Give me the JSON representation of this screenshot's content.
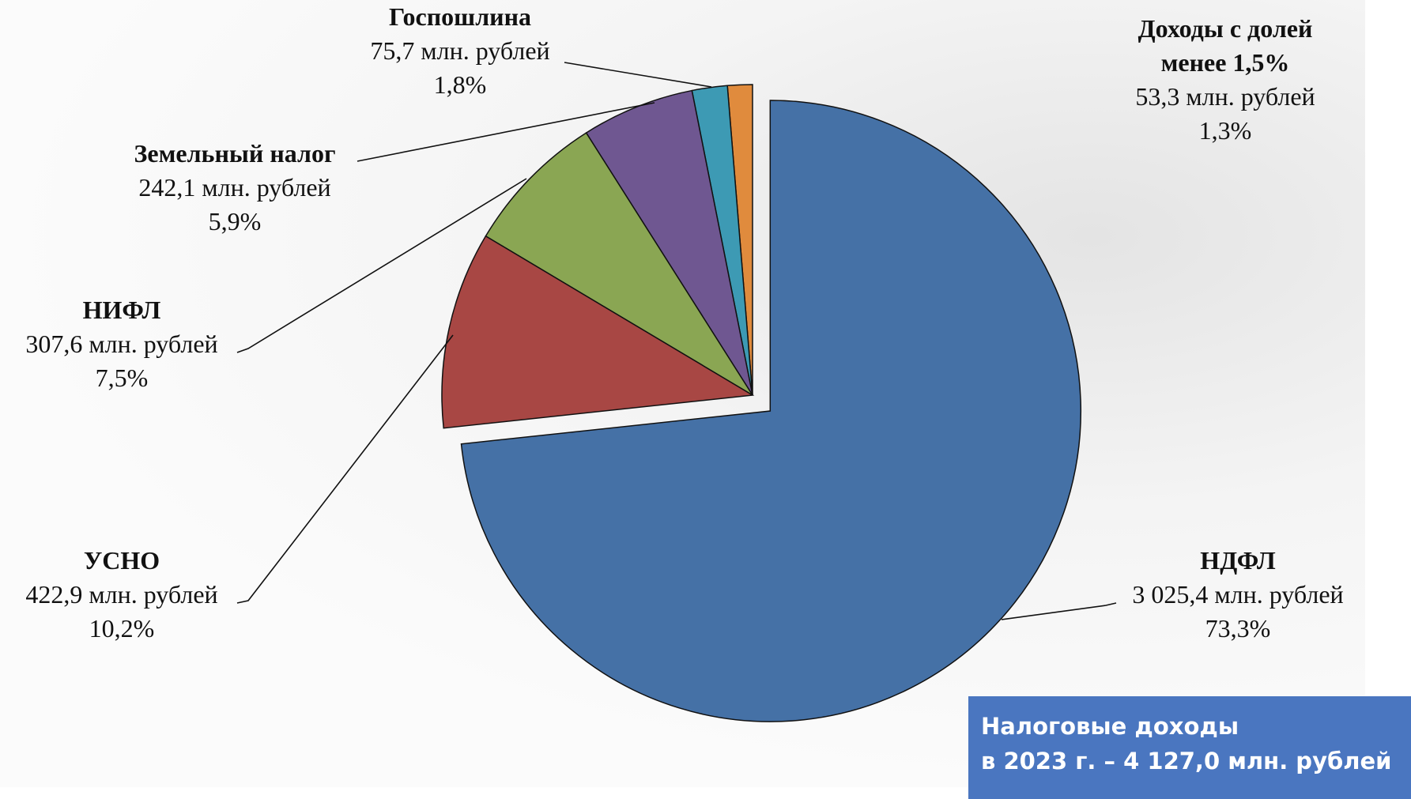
{
  "chart_data": {
    "type": "pie",
    "categories": [
      "НДФЛ",
      "УСНО",
      "НИФЛ",
      "Земельный налог",
      "Госпошлина",
      "Доходы с долей менее 1,5%"
    ],
    "values": [
      3025.4,
      422.9,
      307.6,
      242.1,
      75.7,
      53.3
    ],
    "value_labels": [
      "3 025,4 млн. рублей",
      "422,9 млн. рублей",
      "307,6 млн. рублей",
      "242,1 млн. рублей",
      "75,7 млн. рублей",
      "53,3 млн. рублей"
    ],
    "percents": [
      73.3,
      10.2,
      7.5,
      5.9,
      1.8,
      1.3
    ],
    "percent_labels": [
      "73,3%",
      "10,2%",
      "7,5%",
      "5,9%",
      "1,8%",
      "1,3%"
    ],
    "colors": [
      "#4571a6",
      "#a84744",
      "#8aa653",
      "#6f5791",
      "#3d9ab4",
      "#e08b3d"
    ],
    "summary": [
      "Налоговые доходы",
      "в 2023 г. – 4 127,0 млн. рублей"
    ]
  }
}
